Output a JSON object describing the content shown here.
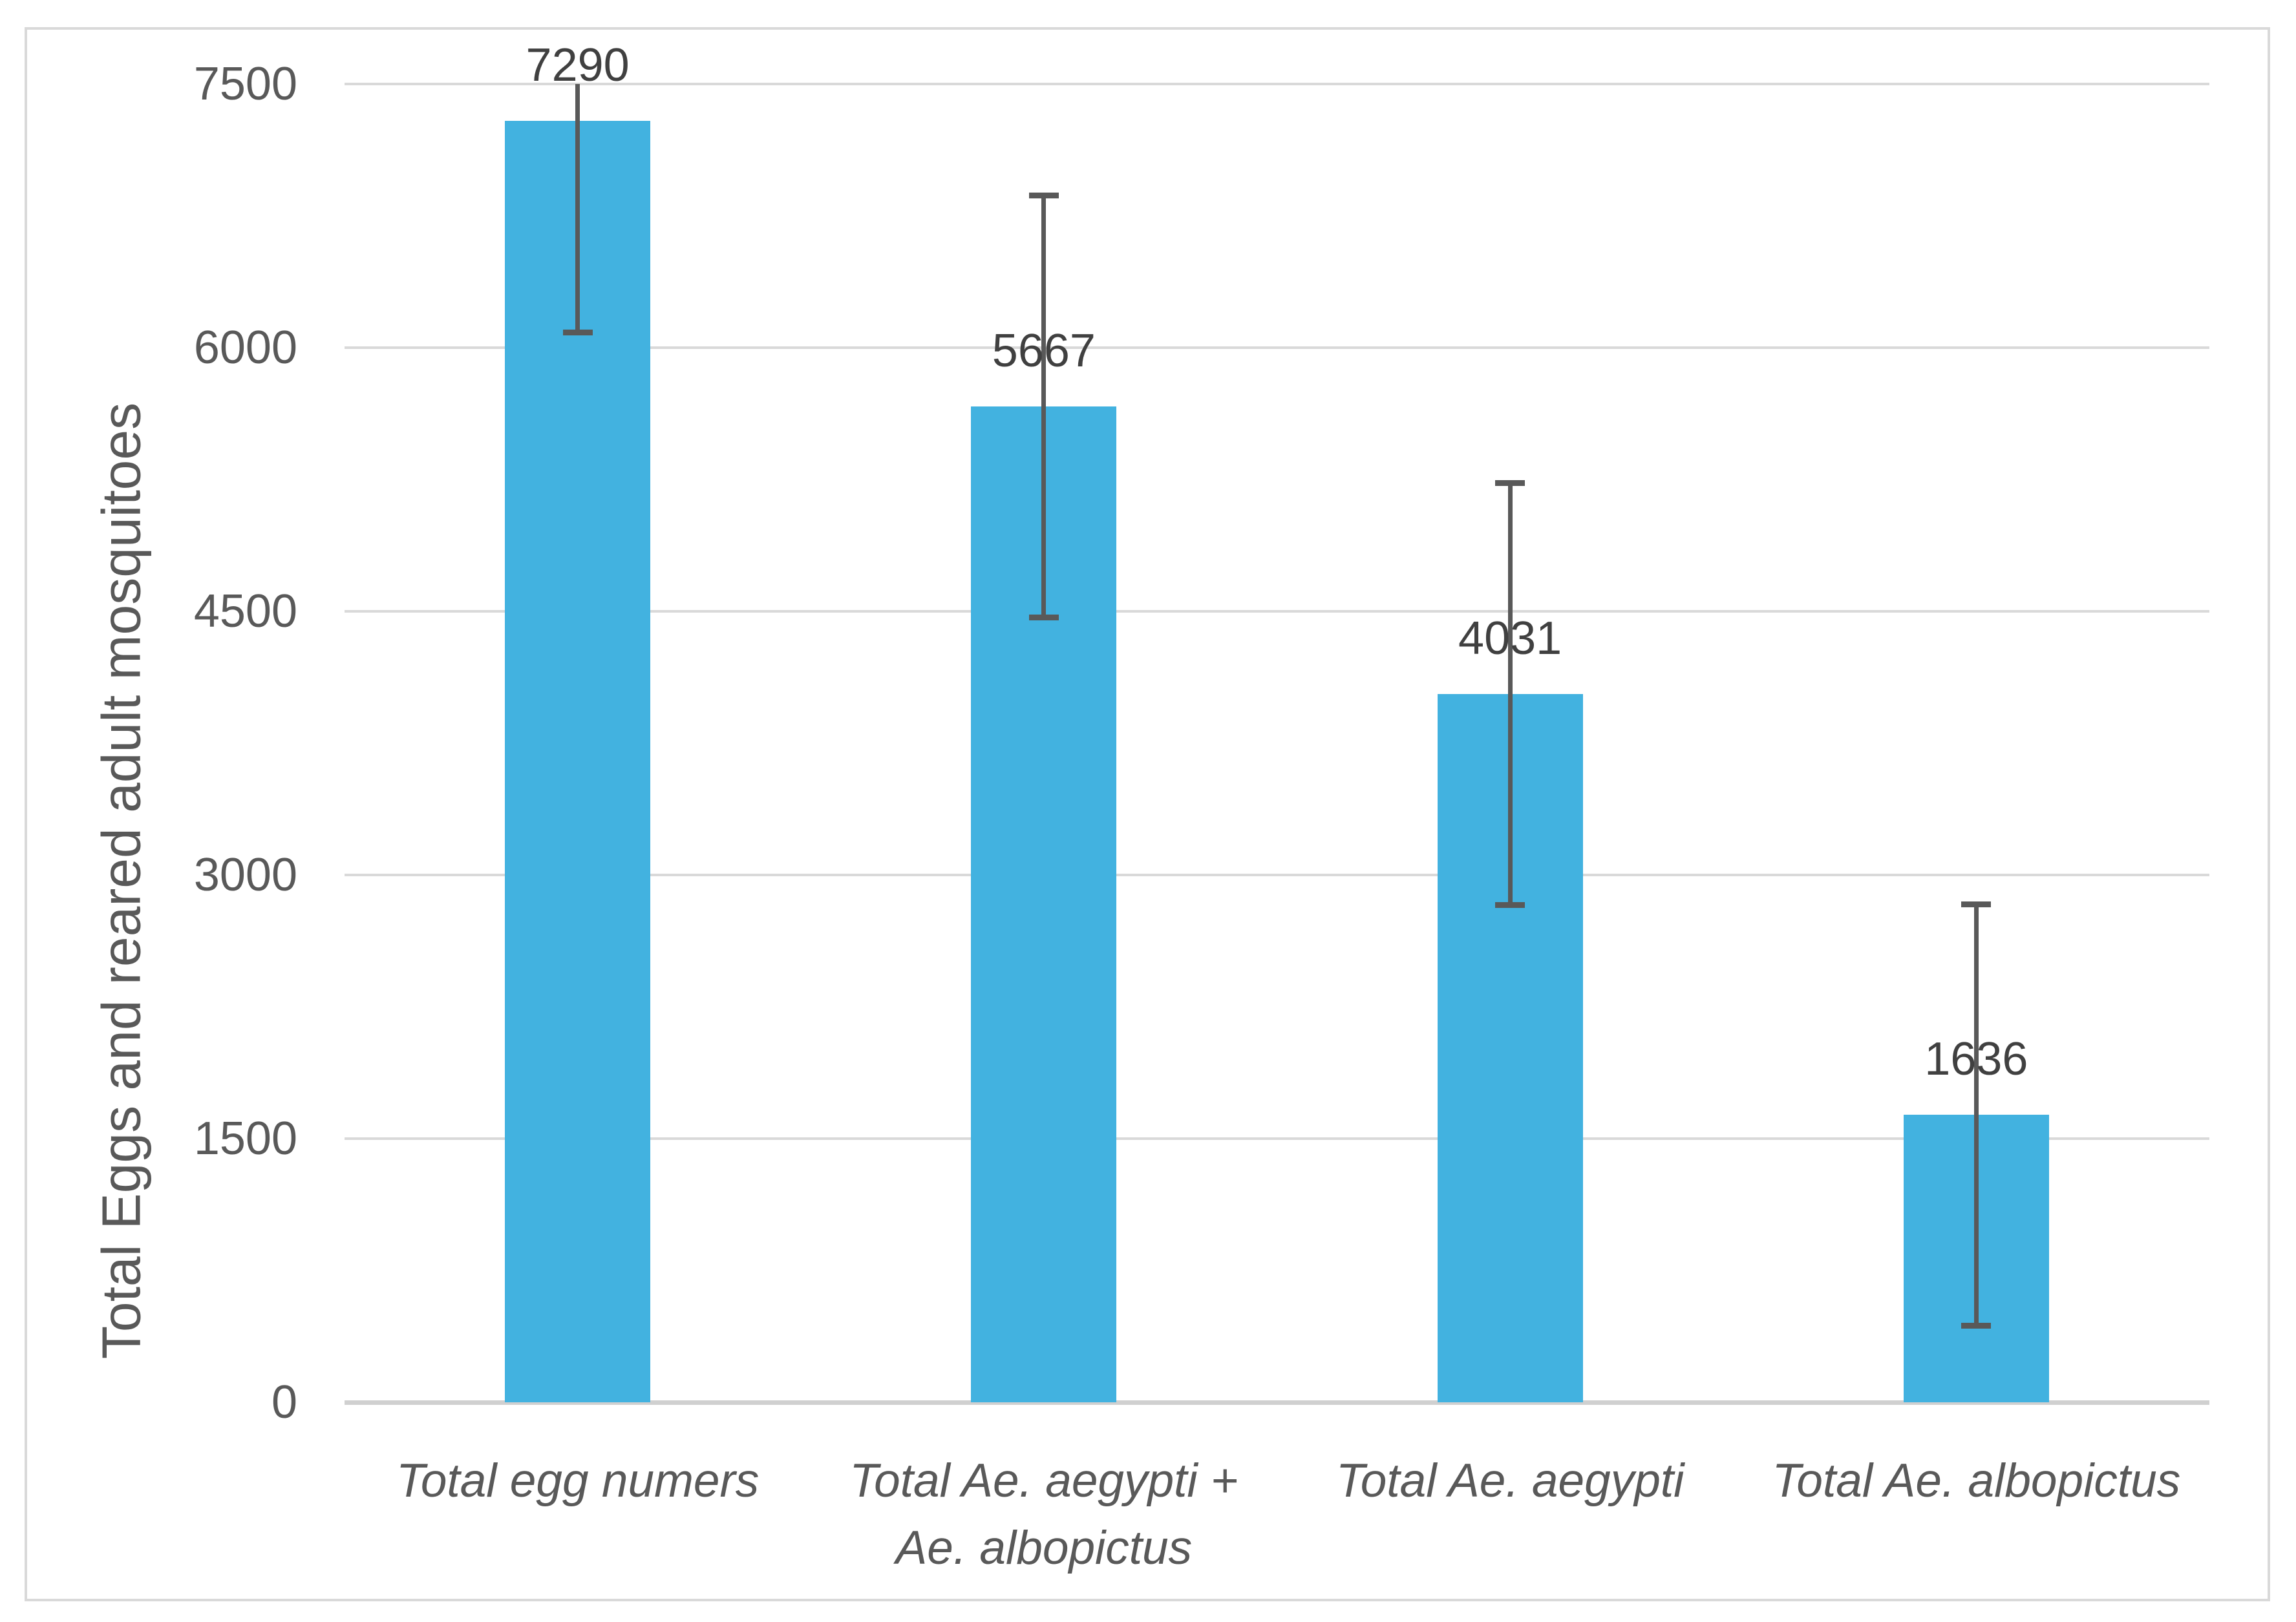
{
  "chart_data": {
    "type": "bar",
    "title": "",
    "xlabel": "",
    "ylabel": "Total Eggs and reared adult mosquitoes",
    "categories": [
      "Total egg numers",
      "Total Ae. aegypti + Ae. albopictus",
      "Total Ae. aegypti",
      "Total Ae. albopictus"
    ],
    "category_lines": [
      [
        "Total egg numers"
      ],
      [
        "Total Ae. aegypti +",
        "Ae. albopictus"
      ],
      [
        "Total Ae. aegypti"
      ],
      [
        "Total Ae. albopictus"
      ]
    ],
    "values": [
      7290,
      5667,
      4031,
      1636
    ],
    "data_labels": [
      "7290",
      "5667",
      "4031",
      "1636"
    ],
    "error_bar": {
      "plus": 1200,
      "minus": 1200,
      "clip_at_axis_max": true
    },
    "y_axis": {
      "min": 0,
      "max": 7500,
      "tick_step": 1500,
      "ticks": [
        0,
        1500,
        3000,
        4500,
        6000,
        7500
      ]
    },
    "grid": true,
    "legend": false,
    "colors": {
      "bar": "#42B2E0",
      "gridline": "#D9D9D9",
      "axis_line": "#D0D0D0",
      "error_bar": "#595959",
      "tick_label": "#595959",
      "data_label": "#404040",
      "category_label": "#595959",
      "axis_title": "#595959",
      "chart_border": "#D9D9D9",
      "background": "#FFFFFF"
    }
  }
}
